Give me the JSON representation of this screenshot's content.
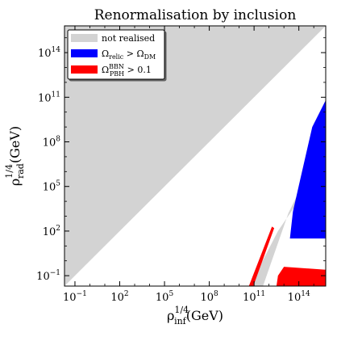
{
  "chart_data": {
    "type": "area",
    "title": "Renormalisation by inclusion",
    "xlabel": {
      "main": "ρ",
      "sup": "1/4",
      "sub": "inf",
      "unit": "(GeV)"
    },
    "ylabel": {
      "main": "ρ",
      "sup": "1/4",
      "sub": "rad",
      "unit": "(GeV)"
    },
    "xscale": "log",
    "yscale": "log",
    "xlim_log10": [
      -1.7,
      15.8
    ],
    "ylim_log10": [
      -1.7,
      15.8
    ],
    "x_ticks": [
      {
        "log": -1,
        "base": "10",
        "exp": "−1"
      },
      {
        "log": 2,
        "base": "10",
        "exp": "2"
      },
      {
        "log": 5,
        "base": "10",
        "exp": "5"
      },
      {
        "log": 8,
        "base": "10",
        "exp": "8"
      },
      {
        "log": 11,
        "base": "10",
        "exp": "11"
      },
      {
        "log": 14,
        "base": "10",
        "exp": "14"
      }
    ],
    "y_ticks": [
      {
        "log": -1,
        "base": "10",
        "exp": "−1"
      },
      {
        "log": 2,
        "base": "10",
        "exp": "2"
      },
      {
        "log": 5,
        "base": "10",
        "exp": "5"
      },
      {
        "log": 8,
        "base": "10",
        "exp": "8"
      },
      {
        "log": 11,
        "base": "10",
        "exp": "11"
      },
      {
        "log": 14,
        "base": "10",
        "exp": "14"
      }
    ],
    "legend": {
      "position": "upper-left",
      "entries": [
        {
          "label": "not realised",
          "color": "#d3d3d3"
        },
        {
          "label": "Ω",
          "sub": "relic",
          "rest": " > Ω",
          "sub2": "DM",
          "color": "#0000ff"
        },
        {
          "label": "Ω",
          "sup": "BBN",
          "sub": "PBH",
          "rest": " > 0.1",
          "color": "#ff0000"
        }
      ]
    },
    "regions": [
      {
        "name": "not realised (upper)",
        "color": "#d3d3d3",
        "polygon_log10": [
          [
            -1.7,
            -1.7
          ],
          [
            15.8,
            15.8
          ],
          [
            -1.7,
            15.8
          ]
        ]
      },
      {
        "name": "not realised (lower band)",
        "color": "#d3d3d3",
        "polygon_log10": [
          [
            10.7,
            -1.7
          ],
          [
            11.6,
            -1.7
          ],
          [
            13.3,
            3.2
          ],
          [
            15.8,
            8.3
          ],
          [
            15.8,
            5.0
          ],
          [
            14.1,
            4.2
          ],
          [
            12.6,
            2.0
          ]
        ]
      },
      {
        "name": "Omega_relic > Omega_DM",
        "color": "#0000ff",
        "polygon_log10": [
          [
            13.4,
            1.5
          ],
          [
            15.8,
            1.5
          ],
          [
            15.8,
            10.8
          ],
          [
            14.9,
            9.0
          ],
          [
            14.1,
            5.5
          ],
          [
            13.6,
            3.3
          ]
        ]
      },
      {
        "name": "Omega_PBH^BBN > 0.1",
        "color": "#ff0000",
        "polygon_log10": [
          [
            12.5,
            -1.7
          ],
          [
            15.8,
            -1.7
          ],
          [
            15.8,
            -0.6
          ],
          [
            13.0,
            -0.4
          ],
          [
            12.6,
            -1.0
          ]
        ]
      },
      {
        "name": "Omega_PBH^BBN > 0.1 (edge)",
        "color": "#ff0000",
        "polygon_log10": [
          [
            10.65,
            -1.7
          ],
          [
            10.95,
            -1.7
          ],
          [
            12.35,
            2.2
          ],
          [
            12.2,
            2.3
          ]
        ]
      }
    ]
  }
}
